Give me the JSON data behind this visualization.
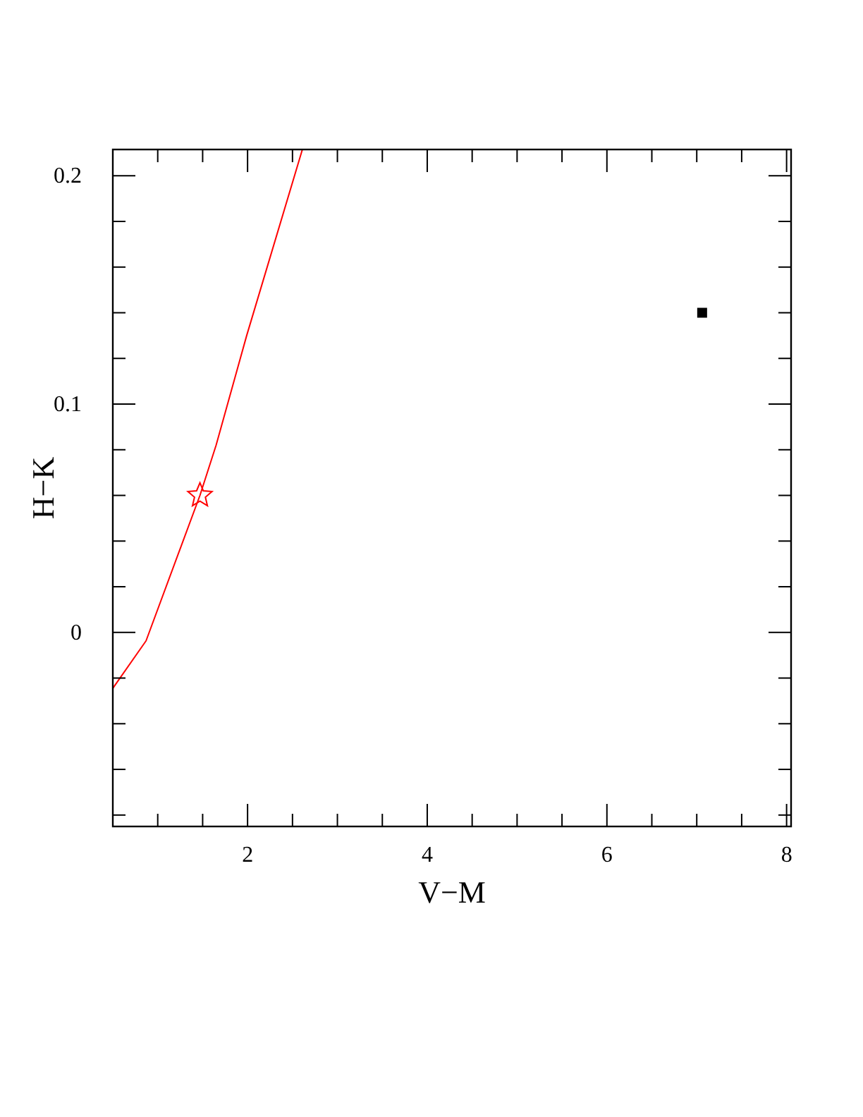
{
  "chart_data": {
    "type": "line",
    "xlabel": "V−M",
    "ylabel": "H−K",
    "xlim": [
      0.5,
      8.05
    ],
    "ylim": [
      -0.085,
      0.2115
    ],
    "xticks": [
      {
        "value": 1,
        "label": null
      },
      {
        "value": 1.5,
        "label": null
      },
      2,
      {
        "value": 2.5,
        "label": null
      },
      {
        "value": 3,
        "label": null
      },
      {
        "value": 3.5,
        "label": null
      },
      4,
      {
        "value": 4.5,
        "label": null
      },
      {
        "value": 5,
        "label": null
      },
      {
        "value": 5.5,
        "label": null
      },
      6,
      {
        "value": 6.5,
        "label": null
      },
      {
        "value": 7,
        "label": null
      },
      {
        "value": 7.5,
        "label": null
      },
      8
    ],
    "yticks": [
      {
        "value": -0.08,
        "label": null
      },
      {
        "value": -0.06,
        "label": null
      },
      {
        "value": -0.04,
        "label": null
      },
      {
        "value": -0.02,
        "label": null
      },
      0,
      {
        "value": 0.02,
        "label": null
      },
      {
        "value": 0.04,
        "label": null
      },
      {
        "value": 0.06,
        "label": null
      },
      {
        "value": 0.08,
        "label": null
      },
      0.1,
      {
        "value": 0.12,
        "label": null
      },
      {
        "value": 0.14,
        "label": null
      },
      {
        "value": 0.16,
        "label": null
      },
      {
        "value": 0.18,
        "label": null
      },
      0.2
    ],
    "grid": false,
    "series": [
      {
        "color": "#ff0000",
        "marker": "none",
        "x": [
          0.5,
          0.87,
          1.47,
          1.65,
          1.99,
          2.61
        ],
        "values": [
          -0.0245,
          -0.0037,
          0.06,
          0.082,
          0.13,
          0.2115
        ]
      },
      {
        "type": "scatter",
        "color": "#ff0000",
        "marker": "star",
        "x": [
          1.47
        ],
        "values": [
          0.06
        ]
      },
      {
        "type": "scatter",
        "color": "#000000",
        "marker": "square",
        "x": [
          7.06
        ],
        "values": [
          0.14
        ]
      }
    ]
  }
}
